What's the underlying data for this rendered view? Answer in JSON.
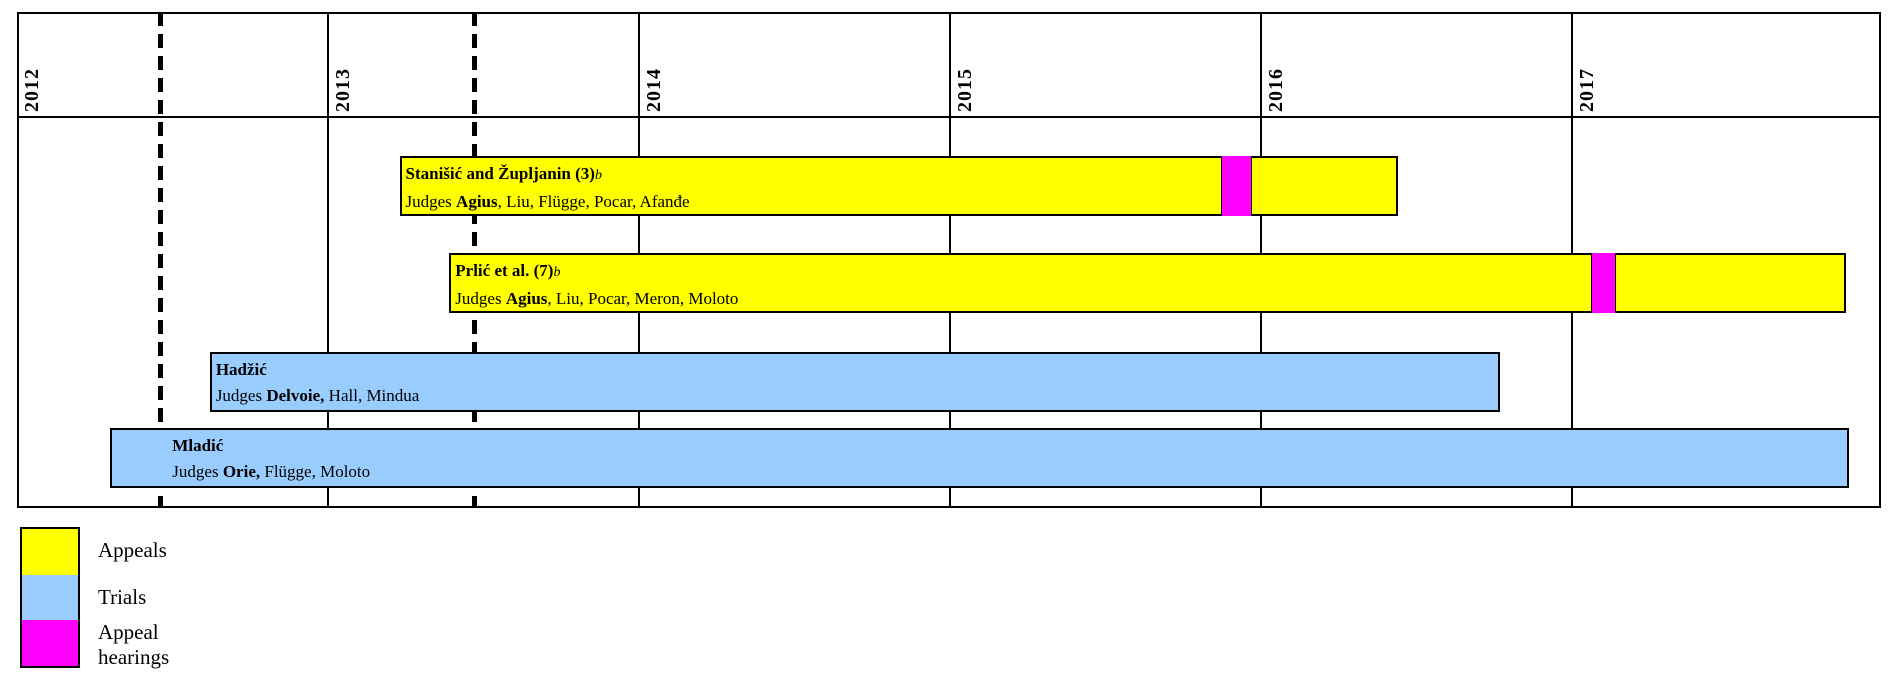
{
  "chart_data": {
    "type": "gantt",
    "title": "",
    "axis": {
      "unit": "year",
      "start_year": 2012,
      "years": [
        "2012",
        "2013",
        "2014",
        "2015",
        "2016",
        "2017"
      ],
      "gridlines_at_year_starts": true
    },
    "milestone_dashed_lines": [
      2012.46,
      2013.47
    ],
    "colors": {
      "appeal": "#FFFF00",
      "trial": "#99CCFF",
      "appeal_hearing": "#FF00FF",
      "line": "#000000"
    },
    "cases": [
      {
        "name": "Stanišić and Župljanin (3)",
        "footnote_marker": "b",
        "judges_prefix": "Judges ",
        "presiding_judge": "Agius",
        "other_judges": ", Liu, Flügge, Pocar, Afanđe",
        "phase": "appeal",
        "row": 0,
        "start": 2013.23,
        "end": 2016.44,
        "hearing": {
          "start": 2015.87,
          "end": 2015.97
        }
      },
      {
        "name": "Prlić et al. (7)",
        "footnote_marker": "b",
        "judges_prefix": "Judges ",
        "presiding_judge": "Agius",
        "other_judges": ", Liu, Pocar, Meron, Moloto",
        "phase": "appeal",
        "row": 1,
        "start": 2013.39,
        "end": 2017.88,
        "hearing": {
          "start": 2017.06,
          "end": 2017.14
        }
      },
      {
        "name": "Hadžić",
        "footnote_marker": "",
        "judges_prefix": "Judges ",
        "presiding_judge": "Delvoie,",
        "other_judges": " Hall, Mindua",
        "phase": "trial",
        "row": 2,
        "start": 2012.62,
        "end": 2016.77,
        "hearing": null
      },
      {
        "name": "Mladić",
        "footnote_marker": "",
        "judges_prefix": "Judges ",
        "presiding_judge": "Orie,",
        "other_judges": " Flügge, Moloto",
        "phase": "trial",
        "row": 3,
        "start": 2012.3,
        "end": 2017.89,
        "hearing": null
      }
    ],
    "legend": [
      {
        "label": "Appeals",
        "color": "#FFFF00"
      },
      {
        "label": "Trials",
        "color": "#99CCFF"
      },
      {
        "label": "Appeal hearings",
        "color": "#FF00FF"
      }
    ]
  }
}
